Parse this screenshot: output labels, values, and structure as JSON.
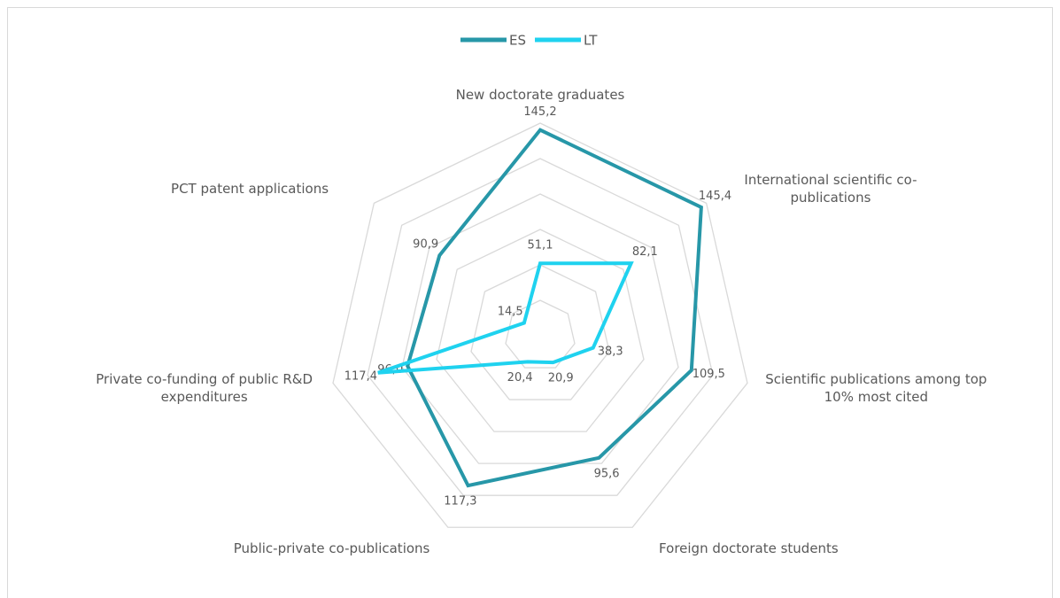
{
  "chart_data": {
    "type": "radar",
    "categories": [
      "New doctorate graduates",
      "International scientific co-publications",
      "Scientific publications among top 10% most cited",
      "Foreign doctorate students",
      "Public-private co-publications",
      "Private co-funding of public R&D expenditures",
      "PCT patent applications"
    ],
    "series": [
      {
        "name": "ES",
        "color": "#2797a8",
        "values": [
          145.2,
          145.4,
          109.5,
          95.6,
          117.3,
          96.0,
          90.9
        ],
        "value_labels": [
          "145,2",
          "145,4",
          "109,5",
          "95,6",
          "117,3",
          "96,0",
          "90,9"
        ]
      },
      {
        "name": "LT",
        "color": "#1fd2ef",
        "values": [
          51.1,
          82.1,
          38.3,
          20.9,
          20.4,
          117.4,
          14.5
        ],
        "value_labels": [
          "51,1",
          "82,1",
          "38,3",
          "20,9",
          "20,4",
          "117,4",
          "14,5"
        ]
      }
    ],
    "ylim": [
      0,
      150
    ],
    "yticks": [
      0,
      25,
      50,
      75,
      100,
      125,
      150
    ],
    "grid": true,
    "legend": "top"
  }
}
